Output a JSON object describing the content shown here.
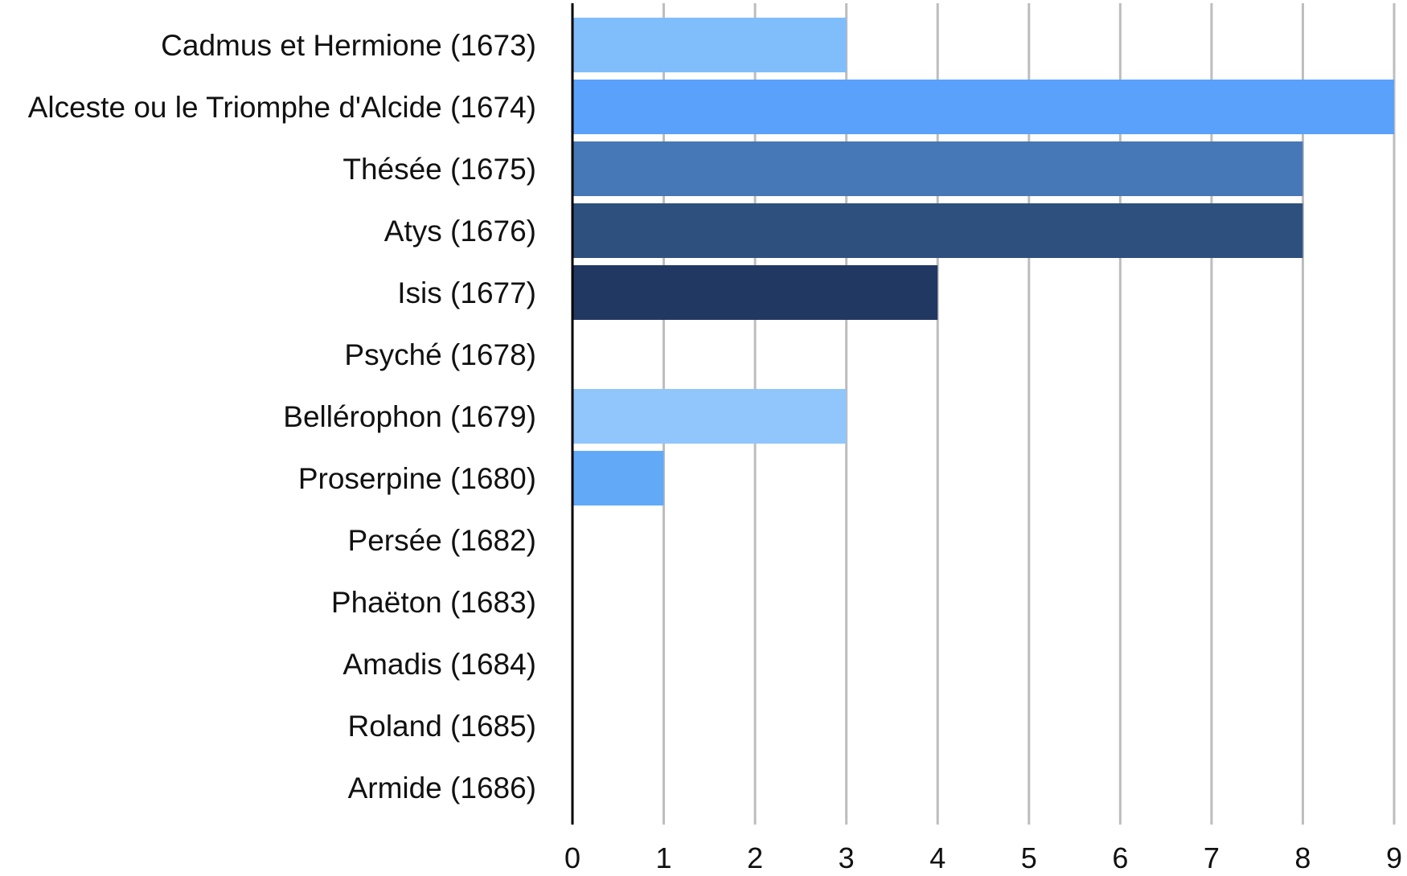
{
  "chart_data": {
    "type": "bar",
    "orientation": "horizontal",
    "categories": [
      "Cadmus et Hermione (1673)",
      "Alceste ou le Triomphe d'Alcide (1674)",
      "Thésée (1675)",
      "Atys (1676)",
      "Isis (1677)",
      "Psyché (1678)",
      "Bellérophon (1679)",
      "Proserpine (1680)",
      "Persée (1682)",
      "Phaëton (1683)",
      "Amadis (1684)",
      "Roland (1685)",
      "Armide (1686)"
    ],
    "values": [
      3,
      9,
      8,
      8,
      4,
      0,
      3,
      1,
      0,
      0,
      0,
      0,
      0
    ],
    "bar_colors": [
      "#7FBEFB",
      "#5AA1FB",
      "#4677B6",
      "#2D507E",
      "#213862",
      "#9BCEFC",
      "#90C6FB",
      "#62AAF8",
      "#5B9BE8",
      "#4677B6",
      "#2D507E",
      "#213862",
      "#1B2E52"
    ],
    "xlim": [
      0,
      9
    ],
    "xticks": [
      "0",
      "1",
      "2",
      "3",
      "4",
      "5",
      "6",
      "7",
      "8",
      "9"
    ],
    "title": "",
    "xlabel": "",
    "ylabel": "",
    "grid": "vertical",
    "legend": "none",
    "grid_color": "#BDBDBD",
    "axis_color": "#000000"
  }
}
